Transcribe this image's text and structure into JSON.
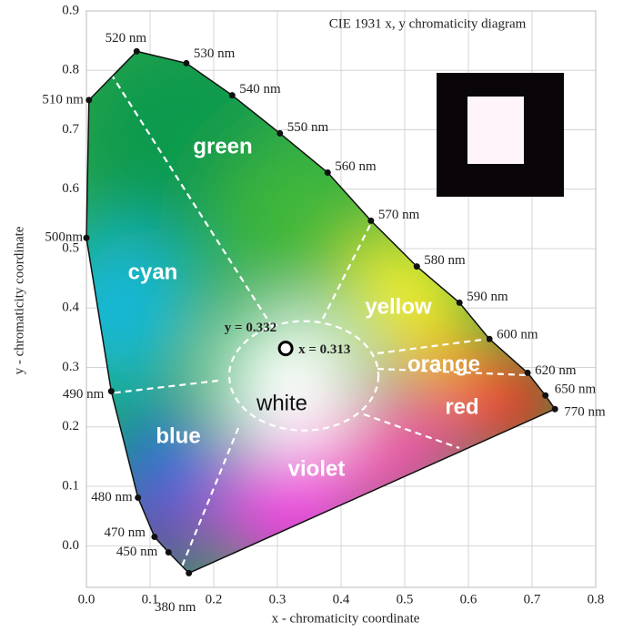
{
  "chart_data": {
    "type": "chromaticity",
    "title": "CIE 1931 x, y chromaticity diagram",
    "x_label": "x - chromaticity coordinate",
    "y_label": "y - chromaticity coordinate",
    "xlim": [
      0,
      0.8
    ],
    "ylim": [
      -0.07,
      0.9
    ],
    "xticks": [
      {
        "value": 0,
        "label": "0.0"
      },
      0.1,
      0.2,
      0.3,
      0.4,
      0.5,
      0.6,
      0.7,
      0.8
    ],
    "yticks": [
      {
        "value": 0,
        "label": "0.0"
      },
      0.1,
      0.2,
      0.3,
      0.4,
      0.5,
      0.6,
      0.7,
      0.8,
      0.9
    ],
    "grid": true,
    "locus": {
      "labels": [
        "380 nm",
        "450 nm",
        "470 nm",
        "480 nm",
        "490 nm",
        "500nm",
        "510 nm",
        "520 nm",
        "530 nm",
        "540 nm",
        "550 nm",
        "560 nm",
        "570 nm",
        "580 nm",
        "590 nm",
        "600 nm",
        "620 nm",
        "650 nm",
        "770 nm"
      ],
      "x": [
        0.161,
        0.129,
        0.107,
        0.081,
        0.039,
        0.0,
        0.004,
        0.079,
        0.157,
        0.229,
        0.304,
        0.379,
        0.447,
        0.519,
        0.586,
        0.633,
        0.693,
        0.721,
        0.736
      ],
      "y": [
        -0.046,
        -0.011,
        0.015,
        0.081,
        0.26,
        0.518,
        0.75,
        0.832,
        0.812,
        0.758,
        0.694,
        0.628,
        0.547,
        0.47,
        0.409,
        0.348,
        0.291,
        0.253,
        0.23
      ]
    },
    "white_point": {
      "x": [
        0.313
      ],
      "y": [
        0.332
      ],
      "x_label": "x = 0.313",
      "y_label": "y = 0.332"
    },
    "regions": [
      "green",
      "cyan",
      "yellow",
      "orange",
      "white",
      "red",
      "blue",
      "violet"
    ]
  }
}
